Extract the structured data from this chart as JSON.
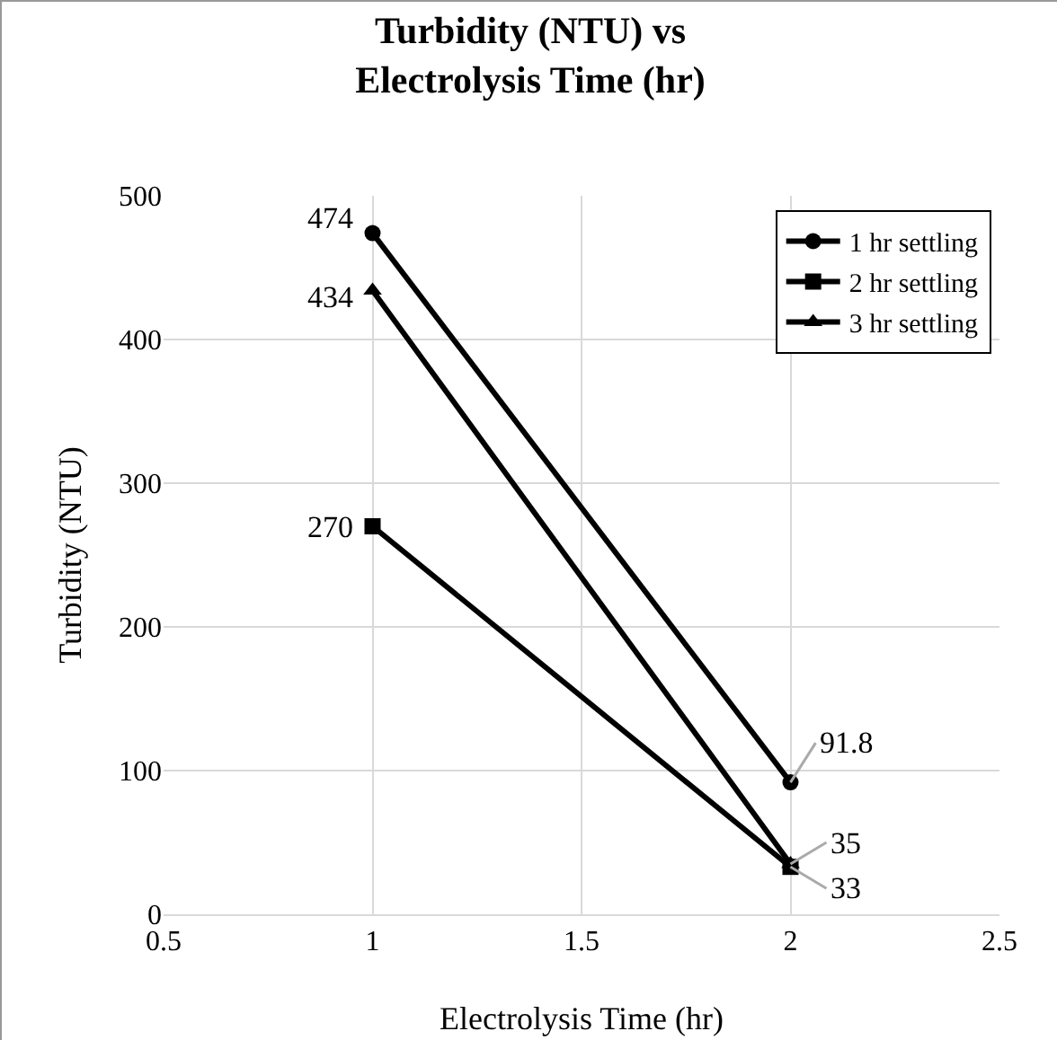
{
  "chart_data": {
    "type": "line",
    "title": "Turbidity (NTU) vs Electrolysis Time (hr)",
    "xlabel": "Electrolysis Time (hr)",
    "ylabel": "Turbidity (NTU)",
    "x": [
      1,
      2
    ],
    "series": [
      {
        "name": "1 hr settling",
        "color": "#000000",
        "marker": "circle",
        "values": [
          474,
          91.8
        ]
      },
      {
        "name": "2 hr settling",
        "color": "#000000",
        "marker": "square",
        "values": [
          270,
          33
        ]
      },
      {
        "name": "3 hr settling",
        "color": "#000000",
        "marker": "triangle",
        "values": [
          434,
          35
        ]
      }
    ],
    "xlim": [
      0.5,
      2.5
    ],
    "xticks": [
      0.5,
      1,
      1.5,
      2,
      2.5
    ],
    "ylim": [
      0,
      500
    ],
    "yticks": [
      0,
      100,
      200,
      300,
      400,
      500
    ],
    "grid": true,
    "legend": "top right",
    "data_labels": true,
    "line_style": "solid"
  }
}
